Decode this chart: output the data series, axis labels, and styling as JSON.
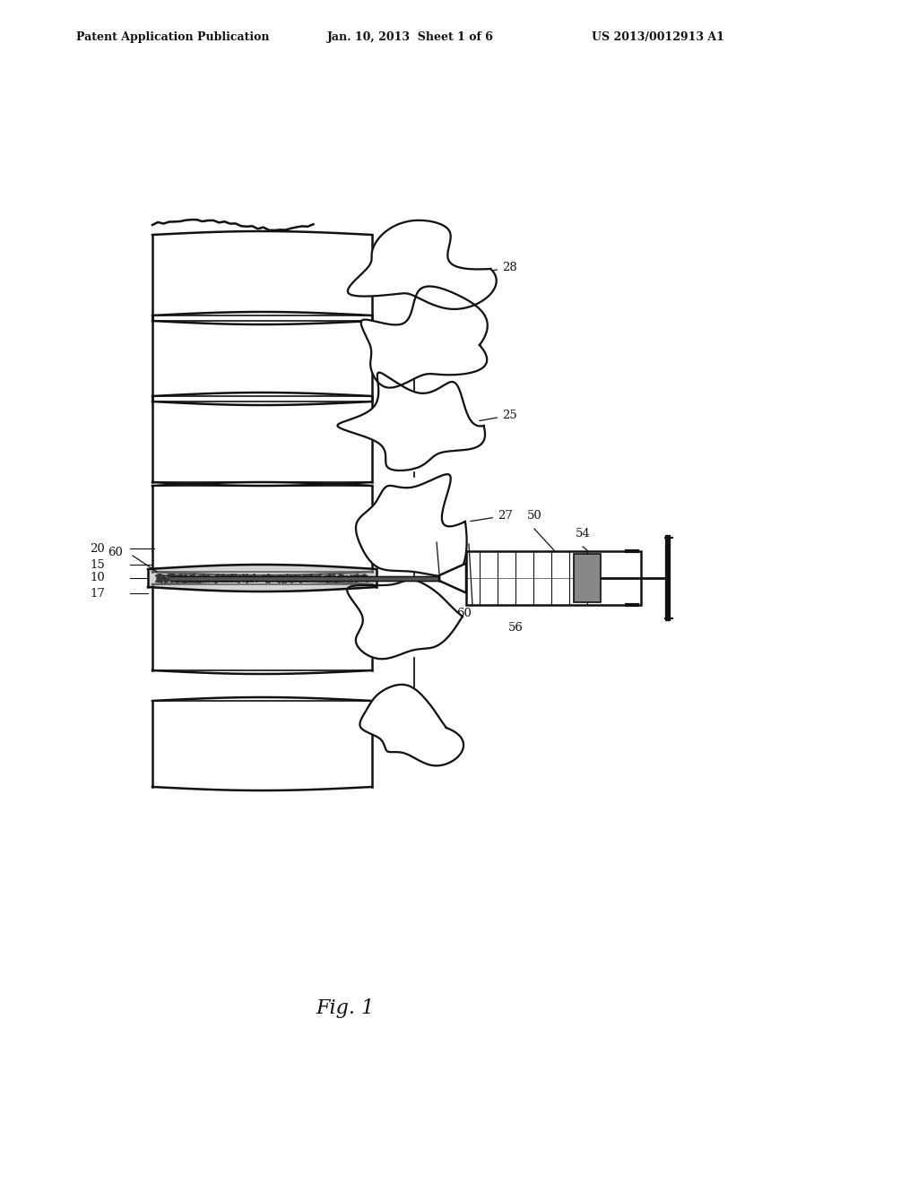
{
  "background_color": "#ffffff",
  "header_left": "Patent Application Publication",
  "header_center": "Jan. 10, 2013  Sheet 1 of 6",
  "header_right": "US 2013/0012913 A1",
  "figure_caption": "Fig. 1",
  "spine_color": "#111111",
  "label_fontsize": 9.5,
  "header_fontsize": 9
}
